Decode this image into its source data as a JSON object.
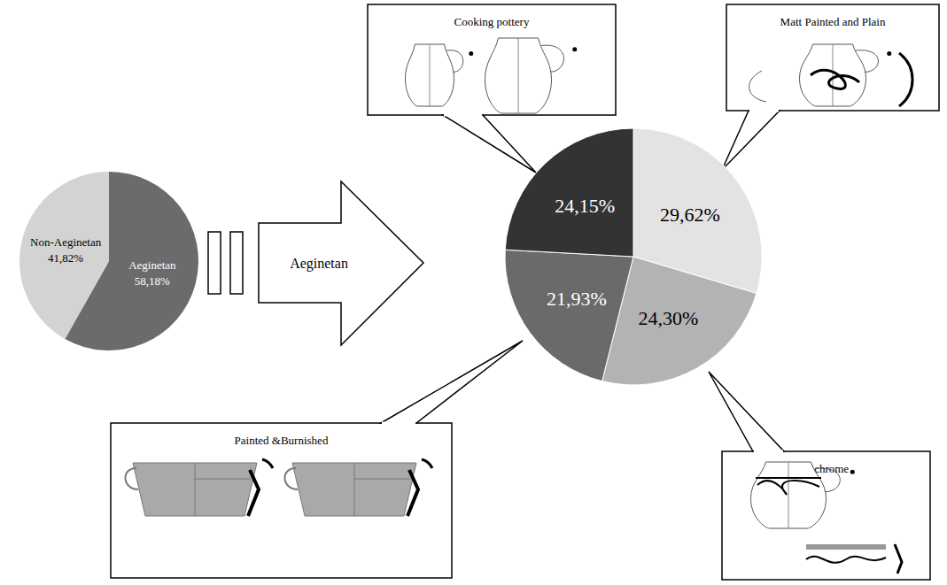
{
  "chart_data": [
    {
      "type": "pie",
      "categories": [
        "Aeginetan",
        "Non-Aeginetan"
      ],
      "values": [
        58.18,
        41.82
      ],
      "value_labels": [
        "58,18%",
        "41,82%"
      ],
      "colors": [
        "#6b6b6b",
        "#d3d3d3"
      ],
      "data_labels": true
    },
    {
      "type": "pie",
      "title": "Aeginetan",
      "categories": [
        "Matt Painted and Plain",
        "Bichrome",
        "Painted &Burnished",
        "Cooking pottery"
      ],
      "values": [
        29.62,
        24.3,
        21.93,
        24.15
      ],
      "value_labels": [
        "29,62%",
        "24,30%",
        "21,93%",
        "24,15%"
      ],
      "colors": [
        "#e3e3e3",
        "#b3b3b3",
        "#6a6a6a",
        "#333333"
      ],
      "data_labels": true
    }
  ]
}
